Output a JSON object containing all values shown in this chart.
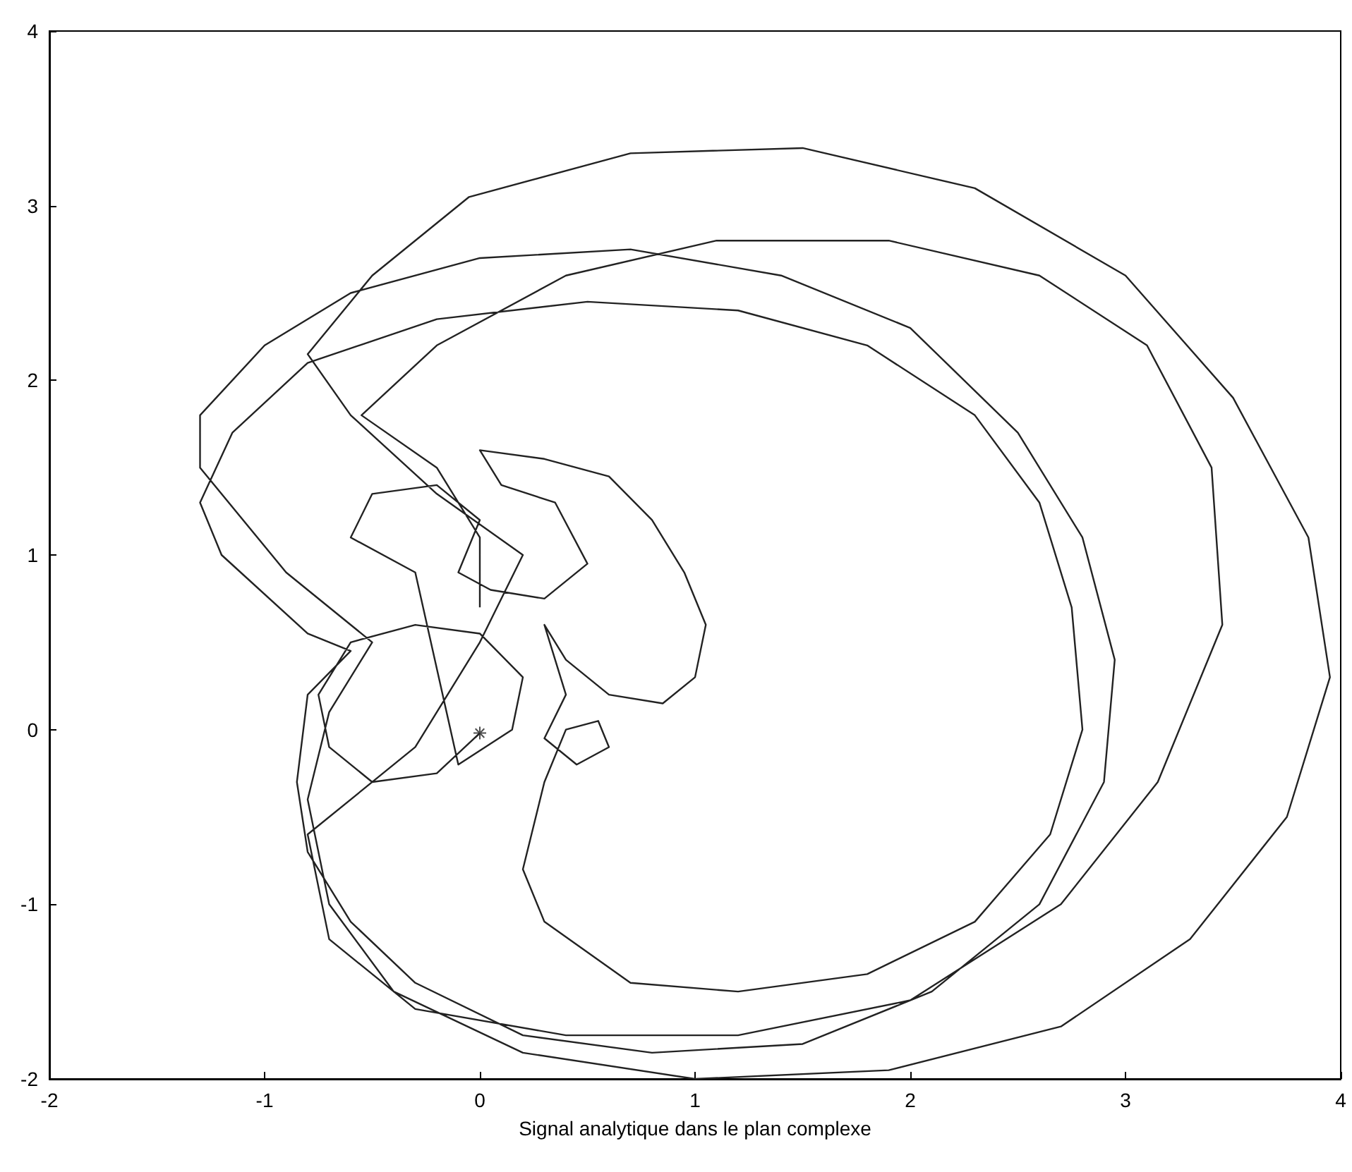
{
  "chart_data": {
    "type": "line",
    "xlabel": "Signal analytique dans le plan complexe",
    "xlim": [
      -2,
      4
    ],
    "xticks": [
      -2,
      -1,
      0,
      1,
      2,
      3,
      4
    ],
    "ylim": [
      -2,
      4
    ],
    "yticks": [
      -2,
      -1,
      0,
      1,
      2,
      3,
      4
    ],
    "grid": false,
    "marker": "none",
    "series": [
      {
        "color": "#222222",
        "x": [
          0,
          -0.2,
          -0.5,
          -0.7,
          -0.75,
          -0.6,
          -0.3,
          0,
          0.2,
          0.15,
          -0.1,
          -0.3,
          -0.6,
          -0.5,
          -0.2,
          0,
          -0.1,
          0.05,
          0.3,
          0.5,
          0.35,
          0.1,
          0,
          0.3,
          0.6,
          0.8,
          0.95,
          1.05,
          1,
          0.85,
          0.6,
          0.4,
          0.3,
          0.4,
          0.3,
          0.45,
          0.6,
          0.55,
          0.4,
          0.3,
          0.2,
          0.3,
          0.7,
          1.2,
          1.8,
          2.3,
          2.65,
          2.8,
          2.75,
          2.6,
          2.3,
          1.8,
          1.2,
          0.5,
          -0.2,
          -0.8,
          -1.15,
          -1.3,
          -1.2,
          -0.8,
          -0.6,
          -0.8,
          -0.85,
          -0.8,
          -0.6,
          -0.3,
          0.2,
          0.8,
          1.5,
          2.1,
          2.6,
          2.9,
          2.95,
          2.8,
          2.5,
          2,
          1.4,
          0.7,
          0,
          -0.6,
          -1,
          -1.3,
          -1.3,
          -0.9,
          -0.5,
          -0.7,
          -0.8,
          -0.7,
          -0.4,
          0.2,
          1,
          1.9,
          2.7,
          3.3,
          3.75,
          3.95,
          3.85,
          3.5,
          3,
          2.3,
          1.5,
          0.7,
          -0.05,
          -0.5,
          -0.8,
          -0.6,
          -0.2,
          0.2,
          0,
          -0.3,
          -0.8,
          -0.7,
          -0.3,
          0.4,
          1.2,
          2,
          2.7,
          3.15,
          3.45,
          3.4,
          3.1,
          2.6,
          1.9,
          1.1,
          0.4,
          -0.2,
          -0.55,
          -0.2,
          0,
          0
        ],
        "values": [
          -0.02,
          -0.25,
          -0.3,
          -0.1,
          0.2,
          0.5,
          0.6,
          0.55,
          0.3,
          0,
          -0.2,
          0.9,
          1.1,
          1.35,
          1.4,
          1.2,
          0.9,
          0.8,
          0.75,
          0.95,
          1.3,
          1.4,
          1.6,
          1.55,
          1.45,
          1.2,
          0.9,
          0.6,
          0.3,
          0.15,
          0.2,
          0.4,
          0.6,
          0.2,
          -0.05,
          -0.2,
          -0.1,
          0.05,
          0,
          -0.3,
          -0.8,
          -1.1,
          -1.45,
          -1.5,
          -1.4,
          -1.1,
          -0.6,
          0,
          0.7,
          1.3,
          1.8,
          2.2,
          2.4,
          2.45,
          2.35,
          2.1,
          1.7,
          1.3,
          1,
          0.55,
          0.45,
          0.2,
          -0.3,
          -0.7,
          -1.1,
          -1.45,
          -1.75,
          -1.85,
          -1.8,
          -1.5,
          -1,
          -0.3,
          0.4,
          1.1,
          1.7,
          2.3,
          2.6,
          2.75,
          2.7,
          2.5,
          2.2,
          1.8,
          1.5,
          0.9,
          0.5,
          0.1,
          -0.4,
          -1,
          -1.5,
          -1.85,
          -2,
          -1.95,
          -1.7,
          -1.2,
          -0.5,
          0.3,
          1.1,
          1.9,
          2.6,
          3.1,
          3.33,
          3.3,
          3.05,
          2.6,
          2.15,
          1.8,
          1.35,
          1,
          0.5,
          -0.1,
          -0.6,
          -1.2,
          -1.6,
          -1.75,
          -1.75,
          -1.55,
          -1,
          -0.3,
          0.6,
          1.5,
          2.2,
          2.6,
          2.8,
          2.8,
          2.6,
          2.2,
          1.8,
          1.5,
          1.1,
          0.7
        ]
      },
      {
        "type": "scatter",
        "marker": "cross",
        "color": "#222222",
        "x": [
          0
        ],
        "values": [
          -0.02
        ]
      }
    ]
  }
}
